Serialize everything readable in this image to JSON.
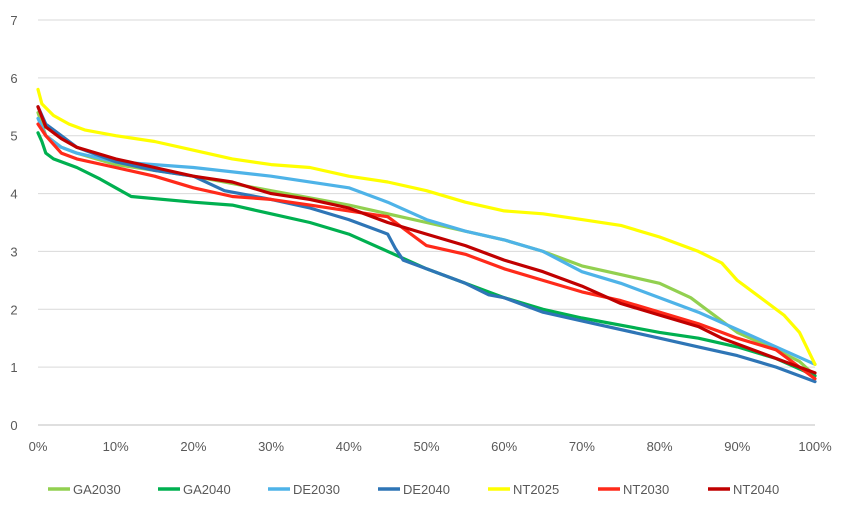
{
  "chart_data": {
    "type": "line",
    "title": "",
    "xlabel": "",
    "ylabel": "",
    "xlim": [
      0,
      100
    ],
    "ylim": [
      0,
      7
    ],
    "x_tick_labels": [
      "0%",
      "10%",
      "20%",
      "30%",
      "40%",
      "50%",
      "60%",
      "70%",
      "80%",
      "90%",
      "100%"
    ],
    "y_tick_labels": [
      "0",
      "1",
      "2",
      "3",
      "4",
      "5",
      "6",
      "7"
    ],
    "grid": "horizontal",
    "legend_position": "bottom",
    "series": [
      {
        "name": "GA2030",
        "color": "#92D050",
        "points": [
          [
            0,
            5.4
          ],
          [
            1,
            5.0
          ],
          [
            3,
            4.8
          ],
          [
            5,
            4.7
          ],
          [
            10,
            4.5
          ],
          [
            20,
            4.3
          ],
          [
            30,
            4.05
          ],
          [
            40,
            3.8
          ],
          [
            50,
            3.5
          ],
          [
            60,
            3.2
          ],
          [
            65,
            3.0
          ],
          [
            70,
            2.75
          ],
          [
            75,
            2.6
          ],
          [
            80,
            2.45
          ],
          [
            84,
            2.2
          ],
          [
            86,
            2.0
          ],
          [
            90,
            1.6
          ],
          [
            95,
            1.3
          ],
          [
            98,
            1.1
          ],
          [
            100,
            0.85
          ]
        ]
      },
      {
        "name": "GA2040",
        "color": "#00B050",
        "points": [
          [
            0,
            5.05
          ],
          [
            0.5,
            4.9
          ],
          [
            1,
            4.7
          ],
          [
            2,
            4.6
          ],
          [
            5,
            4.45
          ],
          [
            8,
            4.25
          ],
          [
            10,
            4.1
          ],
          [
            12,
            3.95
          ],
          [
            20,
            3.85
          ],
          [
            25,
            3.8
          ],
          [
            30,
            3.65
          ],
          [
            35,
            3.5
          ],
          [
            40,
            3.3
          ],
          [
            45,
            3.0
          ],
          [
            50,
            2.7
          ],
          [
            55,
            2.45
          ],
          [
            60,
            2.2
          ],
          [
            65,
            2.0
          ],
          [
            70,
            1.85
          ],
          [
            80,
            1.6
          ],
          [
            85,
            1.5
          ],
          [
            90,
            1.35
          ],
          [
            95,
            1.15
          ],
          [
            100,
            0.85
          ]
        ]
      },
      {
        "name": "DE2030",
        "color": "#4EB3E8",
        "points": [
          [
            0,
            5.3
          ],
          [
            1,
            5.0
          ],
          [
            3,
            4.8
          ],
          [
            5,
            4.7
          ],
          [
            10,
            4.55
          ],
          [
            20,
            4.45
          ],
          [
            30,
            4.3
          ],
          [
            40,
            4.1
          ],
          [
            45,
            3.85
          ],
          [
            50,
            3.55
          ],
          [
            55,
            3.35
          ],
          [
            60,
            3.2
          ],
          [
            65,
            3.0
          ],
          [
            70,
            2.65
          ],
          [
            75,
            2.45
          ],
          [
            80,
            2.2
          ],
          [
            85,
            1.95
          ],
          [
            90,
            1.65
          ],
          [
            95,
            1.35
          ],
          [
            100,
            1.05
          ]
        ]
      },
      {
        "name": "DE2040",
        "color": "#2E75B6",
        "points": [
          [
            0,
            5.5
          ],
          [
            1,
            5.2
          ],
          [
            3,
            5.0
          ],
          [
            5,
            4.8
          ],
          [
            10,
            4.55
          ],
          [
            15,
            4.4
          ],
          [
            20,
            4.3
          ],
          [
            24,
            4.05
          ],
          [
            30,
            3.9
          ],
          [
            35,
            3.75
          ],
          [
            40,
            3.55
          ],
          [
            45,
            3.3
          ],
          [
            46,
            3.05
          ],
          [
            47,
            2.85
          ],
          [
            50,
            2.7
          ],
          [
            55,
            2.45
          ],
          [
            58,
            2.25
          ],
          [
            60,
            2.2
          ],
          [
            65,
            1.95
          ],
          [
            70,
            1.8
          ],
          [
            80,
            1.5
          ],
          [
            85,
            1.35
          ],
          [
            90,
            1.2
          ],
          [
            95,
            1.0
          ],
          [
            100,
            0.75
          ]
        ]
      },
      {
        "name": "NT2025",
        "color": "#FFFF00",
        "points": [
          [
            0,
            5.8
          ],
          [
            0.5,
            5.55
          ],
          [
            2,
            5.35
          ],
          [
            4,
            5.2
          ],
          [
            6,
            5.1
          ],
          [
            10,
            5.0
          ],
          [
            15,
            4.9
          ],
          [
            20,
            4.75
          ],
          [
            25,
            4.6
          ],
          [
            30,
            4.5
          ],
          [
            35,
            4.45
          ],
          [
            40,
            4.3
          ],
          [
            45,
            4.2
          ],
          [
            50,
            4.05
          ],
          [
            55,
            3.85
          ],
          [
            60,
            3.7
          ],
          [
            65,
            3.65
          ],
          [
            70,
            3.55
          ],
          [
            75,
            3.45
          ],
          [
            80,
            3.25
          ],
          [
            85,
            3.0
          ],
          [
            88,
            2.8
          ],
          [
            90,
            2.5
          ],
          [
            93,
            2.2
          ],
          [
            96,
            1.9
          ],
          [
            98,
            1.6
          ],
          [
            100,
            1.05
          ]
        ]
      },
      {
        "name": "NT2030",
        "color": "#FF2A1A",
        "points": [
          [
            0,
            5.2
          ],
          [
            1,
            5.0
          ],
          [
            3,
            4.7
          ],
          [
            5,
            4.6
          ],
          [
            10,
            4.45
          ],
          [
            15,
            4.3
          ],
          [
            20,
            4.1
          ],
          [
            25,
            3.95
          ],
          [
            30,
            3.9
          ],
          [
            35,
            3.8
          ],
          [
            40,
            3.7
          ],
          [
            45,
            3.6
          ],
          [
            48,
            3.3
          ],
          [
            50,
            3.1
          ],
          [
            55,
            2.95
          ],
          [
            60,
            2.7
          ],
          [
            65,
            2.5
          ],
          [
            70,
            2.3
          ],
          [
            75,
            2.15
          ],
          [
            80,
            1.95
          ],
          [
            85,
            1.75
          ],
          [
            88,
            1.6
          ],
          [
            90,
            1.5
          ],
          [
            95,
            1.3
          ],
          [
            100,
            0.8
          ]
        ]
      },
      {
        "name": "NT2040",
        "color": "#C00000",
        "points": [
          [
            0,
            5.5
          ],
          [
            1,
            5.15
          ],
          [
            3,
            4.95
          ],
          [
            5,
            4.8
          ],
          [
            10,
            4.6
          ],
          [
            15,
            4.45
          ],
          [
            20,
            4.3
          ],
          [
            25,
            4.2
          ],
          [
            30,
            4.0
          ],
          [
            35,
            3.9
          ],
          [
            40,
            3.75
          ],
          [
            45,
            3.5
          ],
          [
            50,
            3.3
          ],
          [
            55,
            3.1
          ],
          [
            60,
            2.85
          ],
          [
            65,
            2.65
          ],
          [
            70,
            2.4
          ],
          [
            75,
            2.1
          ],
          [
            80,
            1.9
          ],
          [
            85,
            1.7
          ],
          [
            88,
            1.5
          ],
          [
            90,
            1.4
          ],
          [
            95,
            1.15
          ],
          [
            100,
            0.9
          ]
        ]
      }
    ]
  }
}
